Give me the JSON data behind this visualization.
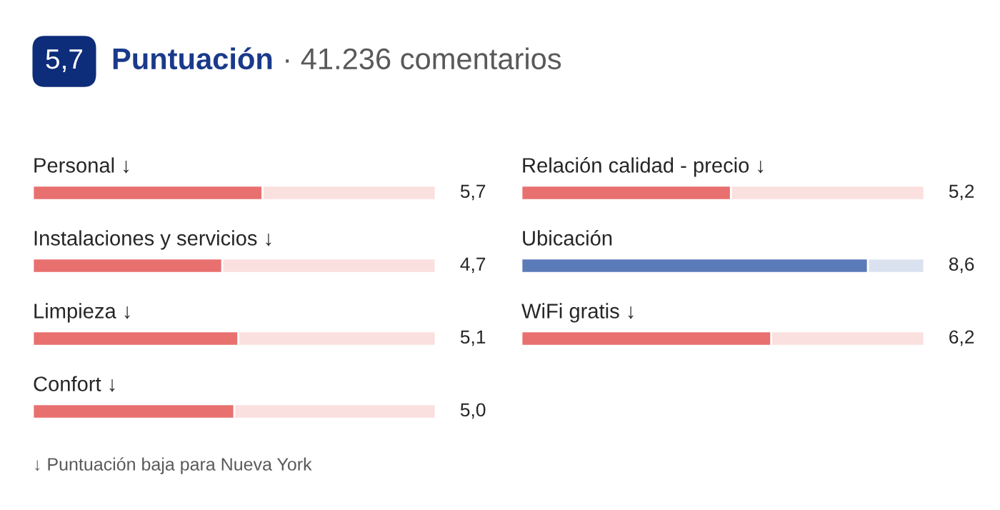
{
  "chart_data": [
    {
      "type": "bar",
      "orientation": "horizontal",
      "title": "Puntuación",
      "subtitle": "· 41.236 comentarios",
      "annotations": [
        "5,7",
        "↓ Puntuación baja para Nueva York"
      ],
      "categories": [
        "Personal ↓",
        "Instalaciones y servicios ↓",
        "Limpieza ↓",
        "Confort ↓"
      ],
      "values": [
        5.7,
        4.7,
        5.1,
        5.0
      ],
      "value_labels": [
        "5,7",
        "4,7",
        "5,1",
        "5,0"
      ],
      "colors": [
        "#e8706f",
        "#e8706f",
        "#e8706f",
        "#e8706f"
      ],
      "xlim": [
        0,
        10
      ],
      "tick_labels": false
    },
    {
      "type": "bar",
      "orientation": "horizontal",
      "categories": [
        "Relación calidad - precio ↓",
        "Ubicación",
        "WiFi gratis ↓"
      ],
      "values": [
        5.2,
        8.6,
        6.2
      ],
      "value_labels": [
        "5,2",
        "8,6",
        "6,2"
      ],
      "colors": [
        "#e8706f",
        "#5b7ab8",
        "#e8706f"
      ],
      "xlim": [
        0,
        10
      ],
      "tick_labels": false
    }
  ]
}
